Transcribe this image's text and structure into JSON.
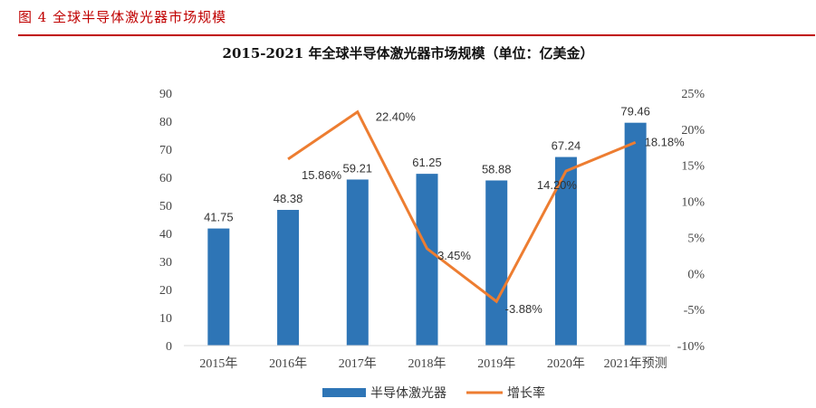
{
  "figure": {
    "caption": "图 4  全球半导体激光器市场规模"
  },
  "chart_data": {
    "type": "bar",
    "title": "2015-2021 年全球半导体激光器市场规模（单位：亿美金）",
    "categories": [
      "2015年",
      "2016年",
      "2017年",
      "2018年",
      "2019年",
      "2020年",
      "2021年预测"
    ],
    "series": [
      {
        "name": "半导体激光器",
        "type": "bar",
        "axis": "left",
        "values": [
          41.75,
          48.38,
          59.21,
          61.25,
          58.88,
          67.24,
          79.46
        ],
        "labels": [
          "41.75",
          "48.38",
          "59.21",
          "61.25",
          "58.88",
          "67.24",
          "79.46"
        ],
        "color": "#2e75b6"
      },
      {
        "name": "增长率",
        "type": "line",
        "axis": "right",
        "values": [
          null,
          15.86,
          22.4,
          3.45,
          -3.88,
          14.2,
          18.18
        ],
        "labels": [
          "",
          "15.86%",
          "22.40%",
          "3.45%",
          "-3.88%",
          "14.20%",
          "18.18%"
        ],
        "color": "#ed7d31"
      }
    ],
    "y_left": {
      "min": 0,
      "max": 90,
      "ticks": [
        "0",
        "10",
        "20",
        "30",
        "40",
        "50",
        "60",
        "70",
        "80",
        "90"
      ]
    },
    "y_right": {
      "min": -10,
      "max": 25,
      "ticks": [
        "-10%",
        "-5%",
        "0%",
        "5%",
        "10%",
        "15%",
        "20%",
        "25%"
      ]
    },
    "grid": false,
    "legend": "bottom-center"
  }
}
